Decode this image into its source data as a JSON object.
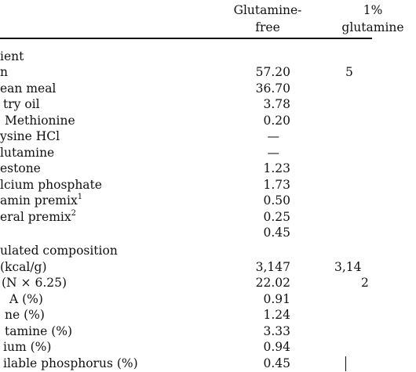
{
  "columns": {
    "col1": [
      "Glutamine-",
      "free"
    ],
    "col2": [
      "1%",
      "glutamine"
    ]
  },
  "sections": {
    "ingredient_heading": "ient",
    "composition_heading": "ulated composition"
  },
  "rows": [
    {
      "label": "n",
      "sup": "",
      "v1": "57.20",
      "v2": "5"
    },
    {
      "label": "ean meal",
      "sup": "",
      "v1": "36.70",
      "v2": ""
    },
    {
      "label": "try oil",
      "sup": "",
      "v1": "3.78",
      "v2": ""
    },
    {
      "label": "Methionine",
      "sup": "",
      "v1": "0.20",
      "v2": ""
    },
    {
      "label": "ysine HCl",
      "sup": "",
      "v1": "—",
      "v2": ""
    },
    {
      "label": "lutamine",
      "sup": "",
      "v1": "—",
      "v2": ""
    },
    {
      "label": "estone",
      "sup": "",
      "v1": "1.23",
      "v2": ""
    },
    {
      "label": "lcium phosphate",
      "sup": "",
      "v1": "1.73",
      "v2": ""
    },
    {
      "label": "amin premix",
      "sup": "1",
      "v1": "0.50",
      "v2": ""
    },
    {
      "label": "eral premix",
      "sup": "2",
      "v1": "0.25",
      "v2": ""
    },
    {
      "label": "",
      "sup": "",
      "v1": "0.45",
      "v2": ""
    },
    {
      "label": "(kcal/g)",
      "sup": "",
      "v1": "3,147",
      "v2": "3,14"
    },
    {
      "label": "(N × 6.25)",
      "sup": "",
      "v1": "22.02",
      "v2": "2"
    },
    {
      "label": "A (%)",
      "sup": "",
      "v1": "0.91",
      "v2": ""
    },
    {
      "label": "ne (%)",
      "sup": "",
      "v1": "1.24",
      "v2": ""
    },
    {
      "label": "tamine (%)",
      "sup": "",
      "v1": "3.33",
      "v2": ""
    },
    {
      "label": "ium (%)",
      "sup": "",
      "v1": "0.94",
      "v2": ""
    },
    {
      "label": "ilable phosphorus (%)",
      "sup": "",
      "v1": "0.45",
      "v2": ""
    }
  ]
}
